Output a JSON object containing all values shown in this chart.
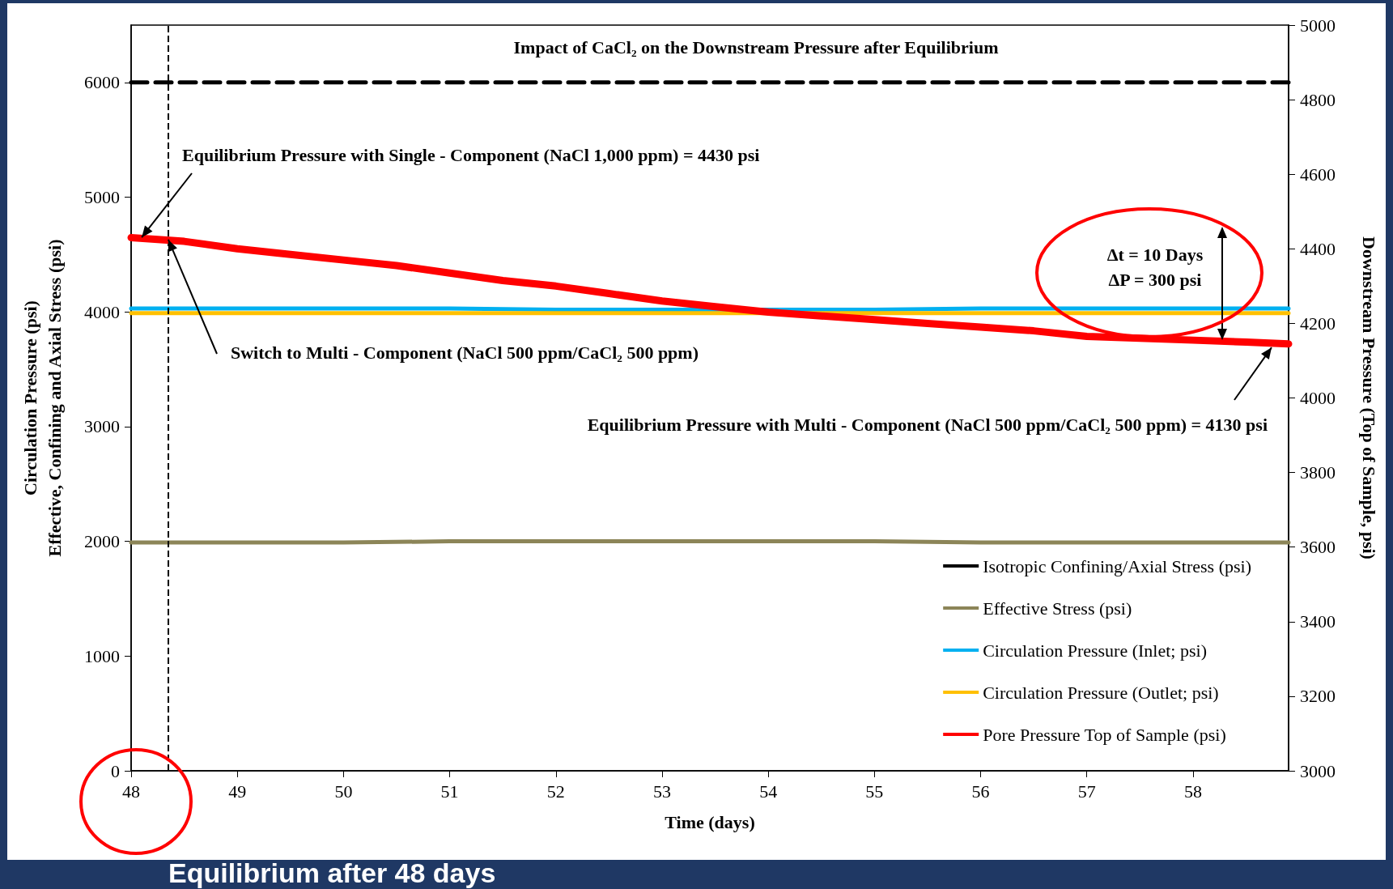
{
  "chart_data": {
    "type": "line",
    "title": "Impact of CaCl₂ on the Downstream Pressure after Equilibrium",
    "xlabel": "Time (days)",
    "ylabel": "Circulation Pressure (psi)\nEffective, Confining and Axial Stress (psi)",
    "y2label": "Downstream Pressure (Top of Sample, psi)",
    "xlim": [
      48,
      58.9
    ],
    "xticks": [
      48,
      49,
      50,
      51,
      52,
      53,
      54,
      55,
      56,
      57,
      58
    ],
    "ylim": [
      0,
      6500
    ],
    "yticks": [
      0,
      1000,
      2000,
      3000,
      4000,
      5000,
      6000
    ],
    "y2lim": [
      3000,
      5000
    ],
    "y2ticks": [
      3000,
      3200,
      3400,
      3600,
      3800,
      4000,
      4200,
      4400,
      4600,
      4800,
      5000
    ],
    "grid": false,
    "legend": "bottom right",
    "marker": "none",
    "series": [
      {
        "name": "Isotropic Confining/Axial Stress (psi)",
        "color": "#000000",
        "line_style": "dashed",
        "x": [
          48,
          58.9
        ],
        "values": [
          6000,
          6000
        ]
      },
      {
        "name": "Effective Stress (psi)",
        "color": "#8c8558",
        "x": [
          48,
          49,
          50,
          51,
          52,
          53,
          54,
          55,
          56,
          57,
          58,
          58.9
        ],
        "values": [
          1990,
          1990,
          1990,
          2000,
          2000,
          2000,
          2000,
          2000,
          1990,
          1990,
          1990,
          1990
        ]
      },
      {
        "name": "Circulation Pressure (Inlet; psi)",
        "color": "#00b0f0",
        "x": [
          48,
          49,
          50,
          51,
          52,
          53,
          54,
          55,
          56,
          57,
          58,
          58.9
        ],
        "values": [
          4030,
          4030,
          4030,
          4030,
          4020,
          4020,
          4020,
          4020,
          4030,
          4030,
          4030,
          4030
        ]
      },
      {
        "name": "Circulation Pressure (Outlet; psi)",
        "color": "#ffc000",
        "x": [
          48,
          49,
          50,
          51,
          52,
          53,
          54,
          55,
          56,
          57,
          58,
          58.9
        ],
        "values": [
          3990,
          3990,
          3990,
          3990,
          3990,
          3990,
          3990,
          3990,
          3990,
          3990,
          3990,
          3990
        ]
      },
      {
        "name": "Pore Pressure Top of Sample (psi)",
        "color": "#ff0000",
        "axis": "y2",
        "x": [
          48,
          48.5,
          49,
          49.5,
          50,
          50.5,
          51,
          51.5,
          52,
          52.5,
          53,
          53.5,
          54,
          54.5,
          55,
          55.5,
          56,
          56.5,
          57,
          57.5,
          58,
          58.5,
          58.9
        ],
        "values": [
          4430,
          4420,
          4400,
          4385,
          4370,
          4355,
          4335,
          4315,
          4300,
          4280,
          4260,
          4245,
          4230,
          4220,
          4210,
          4200,
          4190,
          4180,
          4165,
          4160,
          4155,
          4150,
          4145
        ]
      }
    ],
    "ref_lines": [
      {
        "axis": "x",
        "value": 48.35,
        "color": "#000000",
        "line_style": "dashed"
      }
    ],
    "annotations": [
      {
        "text": "Equilibrium Pressure with Single - Component (NaCl 1,000 ppm) = 4430 psi",
        "x": 48.1,
        "y": 4650
      },
      {
        "text": "Switch to Multi - Component (NaCl 500 ppm/CaCl₂ 500 ppm)",
        "x": 48.35,
        "y": 4630
      },
      {
        "text": "Equilibrium Pressure with Multi - Component (NaCl 500 ppm/CaCl₂ 500 ppm) = 4130 psi",
        "x": 58.74,
        "y": 3690
      },
      "Δt = 10 Days",
      "ΔP = 300 psi",
      "Equilibrium after 48 days"
    ]
  }
}
